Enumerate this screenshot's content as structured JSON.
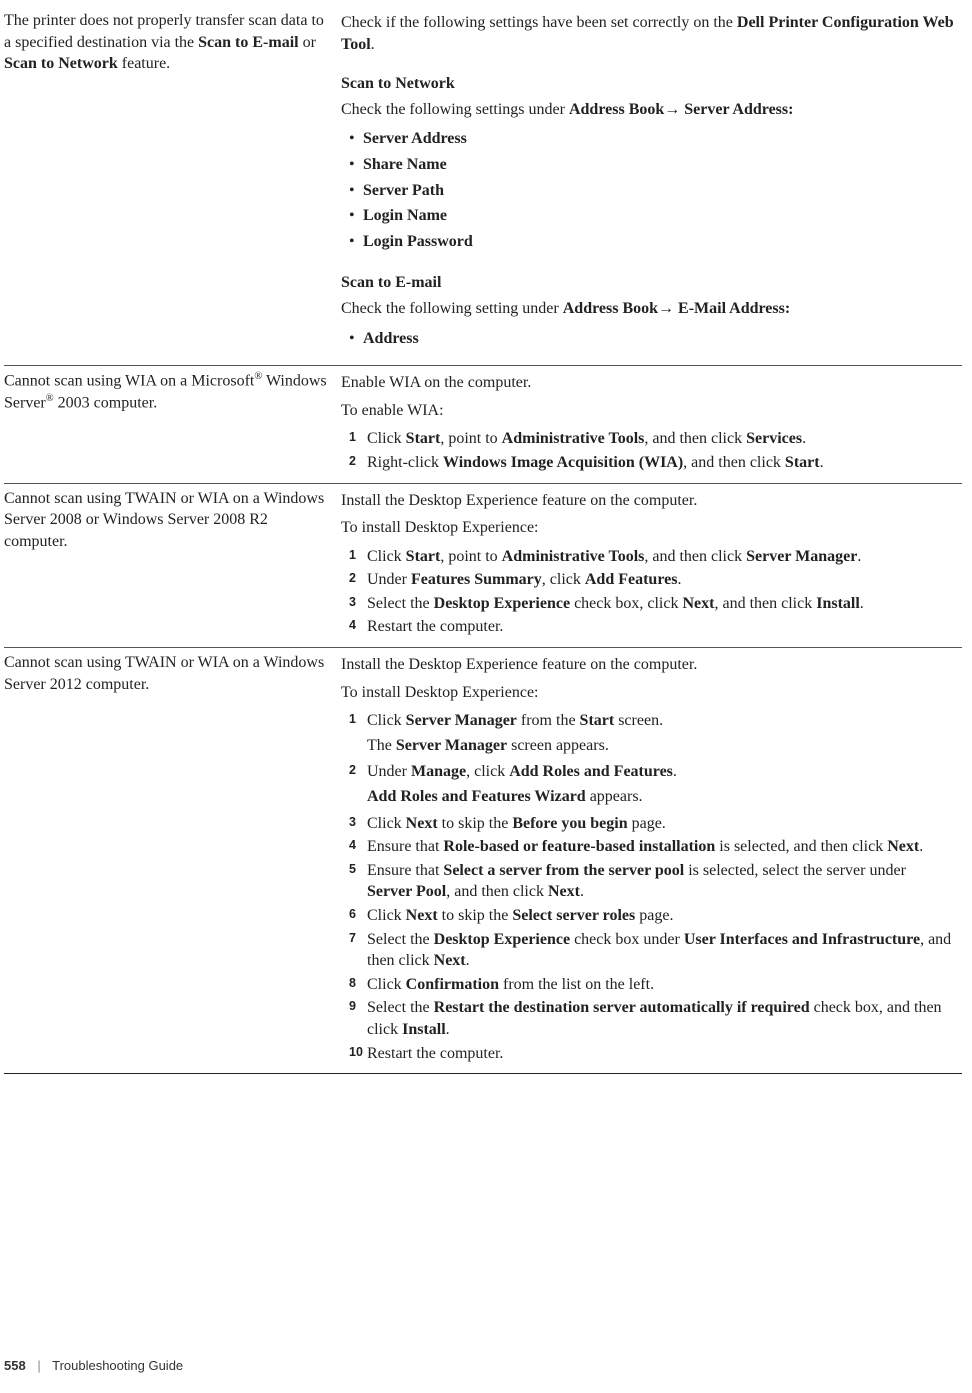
{
  "rows": {
    "r1": {
      "problem_parts": {
        "p_a": "The printer does not properly transfer scan data to a specified destination via the ",
        "p_b": "Scan to E-mail",
        "p_c": " or ",
        "p_d": "Scan to Network",
        "p_e": " feature."
      },
      "action_intro_a": "Check if the following settings have been set correctly on the ",
      "action_intro_b": "Dell Printer Configuration Web Tool",
      "action_intro_c": ".",
      "section_net": "Scan to Network",
      "net_line_a": "Check the following settings under ",
      "net_line_b": "Address Book",
      "net_line_c": " Server Address:",
      "net_items": [
        "Server Address",
        "Share Name",
        "Server Path",
        "Login Name",
        "Login Password"
      ],
      "section_mail": "Scan to E-mail",
      "mail_line_a": "Check the following setting under ",
      "mail_line_b": "Address Book",
      "mail_line_c": " E-Mail Address:",
      "mail_items": [
        "Address"
      ]
    },
    "r2": {
      "problem_a": "Cannot scan using WIA on a Microsoft",
      "problem_b": " Windows Server",
      "problem_c": " 2003 computer.",
      "a1": "Enable WIA on the computer.",
      "a2": "To enable WIA:",
      "s1_a": "Click ",
      "s1_b": "Start",
      "s1_c": ", point to ",
      "s1_d": "Administrative Tools",
      "s1_e": ", and then click ",
      "s1_f": "Services",
      "s1_g": ".",
      "s2_a": "Right-click ",
      "s2_b": "Windows Image Acquisition (WIA)",
      "s2_c": ", and then click ",
      "s2_d": "Start",
      "s2_e": "."
    },
    "r3": {
      "problem": "Cannot scan using TWAIN or WIA on a Windows Server 2008 or Windows Server 2008 R2 computer.",
      "a1": "Install the Desktop Experience feature on the computer.",
      "a2": "To install Desktop Experience:",
      "s1_a": "Click ",
      "s1_b": "Start",
      "s1_c": ", point to ",
      "s1_d": "Administrative Tools",
      "s1_e": ", and then click ",
      "s1_f": "Server Manager",
      "s1_g": ".",
      "s2_a": "Under ",
      "s2_b": "Features Summary",
      "s2_c": ", click ",
      "s2_d": "Add Features",
      "s2_e": ".",
      "s3_a": "Select the ",
      "s3_b": "Desktop Experience",
      "s3_c": " check box, click ",
      "s3_d": "Next",
      "s3_e": ", and then click ",
      "s3_f": "Install",
      "s3_g": ".",
      "s4": "Restart the computer."
    },
    "r4": {
      "problem": "Cannot scan using TWAIN or WIA on a Windows Server 2012 computer.",
      "a1": "Install the Desktop Experience feature on the computer.",
      "a2": "To install Desktop Experience:",
      "s1_a": "Click ",
      "s1_b": "Server Manager",
      "s1_c": " from the ",
      "s1_d": "Start",
      "s1_e": " screen.",
      "s1_sub_a": "The ",
      "s1_sub_b": "Server Manager",
      "s1_sub_c": " screen appears.",
      "s2_a": "Under ",
      "s2_b": "Manage",
      "s2_c": ", click ",
      "s2_d": "Add Roles and Features",
      "s2_e": ".",
      "s2_sub_a": "Add Roles and Features Wizard",
      "s2_sub_b": " appears.",
      "s3_a": "Click ",
      "s3_b": "Next",
      "s3_c": " to skip the ",
      "s3_d": "Before you begin",
      "s3_e": " page.",
      "s4_a": "Ensure that ",
      "s4_b": "Role-based or feature-based installation",
      "s4_c": " is selected, and then click ",
      "s4_d": "Next",
      "s4_e": ".",
      "s5_a": "Ensure that ",
      "s5_b": "Select a server from the server pool",
      "s5_c": " is selected, select the server under ",
      "s5_d": "Server Pool",
      "s5_e": ", and then click ",
      "s5_f": "Next",
      "s5_g": ".",
      "s6_a": "Click ",
      "s6_b": "Next",
      "s6_c": " to skip the ",
      "s6_d": "Select server roles",
      "s6_e": " page.",
      "s7_a": "Select the ",
      "s7_b": "Desktop Experience",
      "s7_c": " check box under ",
      "s7_d": "User Interfaces and Infrastructure",
      "s7_e": ", and then click ",
      "s7_f": "Next",
      "s7_g": ".",
      "s8_a": "Click ",
      "s8_b": "Confirmation",
      "s8_c": " from the list on the left.",
      "s9_a": "Select the ",
      "s9_b": "Restart the destination server automatically if required",
      "s9_c": " check box, and then click ",
      "s9_d": "Install",
      "s9_e": ".",
      "s10": "Restart the computer."
    }
  },
  "footer": {
    "page": "558",
    "sep": "|",
    "title": "Troubleshooting Guide"
  },
  "reg": "®",
  "arrow": "→"
}
